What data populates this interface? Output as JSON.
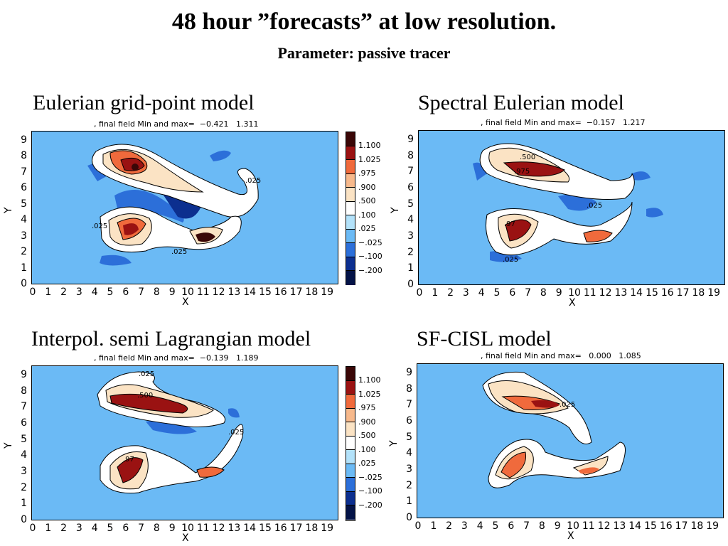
{
  "title": "48 hour ”forecasts” at low resolution.",
  "subtitle": "Parameter: passive tracer",
  "colorbar": {
    "labels": [
      "1.100",
      "1.025",
      ".975",
      ".900",
      ".500",
      ".100",
      ".025",
      "−.025",
      "−.100",
      "−.200"
    ],
    "colors": [
      "#3a0707",
      "#9a1212",
      "#f06a3c",
      "#f7b98c",
      "#fbe3c4",
      "#ffffff",
      "#b3e2fa",
      "#6bbaf5",
      "#2c6fd9",
      "#0c2f8f",
      "#041347"
    ]
  },
  "axis": {
    "x_label": "X",
    "y_label": "Y",
    "x_ticks": [
      "0",
      "1",
      "2",
      "3",
      "4",
      "5",
      "6",
      "7",
      "8",
      "9",
      "10",
      "11",
      "12",
      "13",
      "14",
      "15",
      "16",
      "17",
      "18",
      "19"
    ],
    "y_ticks": [
      "9",
      "8",
      "7",
      "6",
      "5",
      "4",
      "3",
      "2",
      "1",
      "0"
    ]
  },
  "panels": [
    {
      "title": "Eulerian grid-point model",
      "stat": ", final field Min and max=  −0.421   1.311",
      "contour_labels": [
        ".025",
        ".025",
        ".025"
      ]
    },
    {
      "title": "Spectral Eulerian model",
      "stat": ", final field Min and max=  −0.157   1.217",
      "contour_labels": [
        ".500",
        ".975",
        ".025",
        ".97",
        ".025"
      ]
    },
    {
      "title": "Interpol. semi Lagrangian model",
      "stat": ", final field Min and max=  −0.139   1.189",
      "contour_labels": [
        ".025",
        ".500",
        ".025",
        ".97"
      ]
    },
    {
      "title": "SF-CISL model",
      "stat": ", final field Min and max=   0.000   1.085",
      "contour_labels": [
        ".025"
      ]
    }
  ]
}
